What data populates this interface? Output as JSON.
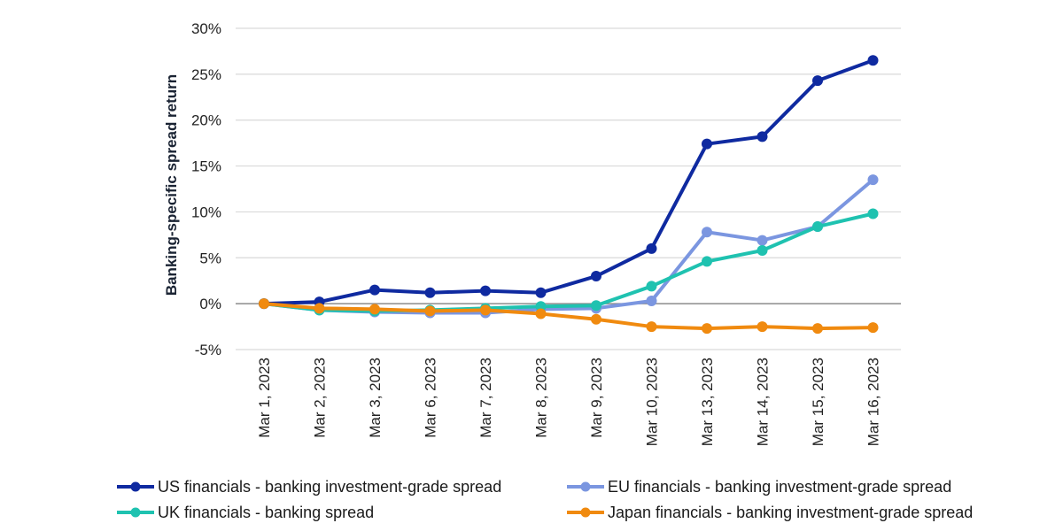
{
  "chart_data": {
    "type": "line",
    "title": "",
    "xlabel": "",
    "ylabel": "Banking-specific spread return",
    "ylim": [
      -5,
      30
    ],
    "yticks": [
      -5,
      0,
      5,
      10,
      15,
      20,
      25,
      30
    ],
    "ytick_labels": [
      "-5%",
      "0%",
      "5%",
      "10%",
      "15%",
      "20%",
      "25%",
      "30%"
    ],
    "grid": true,
    "legend_position": "bottom",
    "categories": [
      "Mar 1, 2023",
      "Mar 2, 2023",
      "Mar 3, 2023",
      "Mar 6, 2023",
      "Mar 7, 2023",
      "Mar 8, 2023",
      "Mar 9, 2023",
      "Mar 10, 2023",
      "Mar 13, 2023",
      "Mar 14, 2023",
      "Mar 15, 2023",
      "Mar 16, 2023"
    ],
    "series": [
      {
        "name": "US financials - banking investment-grade spread",
        "color": "#0f2aa0",
        "values": [
          0,
          0.2,
          1.5,
          1.2,
          1.4,
          1.2,
          3.0,
          6.0,
          17.4,
          18.2,
          24.3,
          26.5
        ]
      },
      {
        "name": "EU financials - banking investment-grade spread",
        "color": "#7b96e0",
        "values": [
          0,
          -0.7,
          -0.9,
          -1.0,
          -1.0,
          -0.6,
          -0.5,
          0.3,
          7.8,
          6.9,
          8.4,
          13.5
        ]
      },
      {
        "name": "UK financials - banking spread",
        "color": "#1fc2b0",
        "values": [
          0,
          -0.7,
          -0.8,
          -0.7,
          -0.5,
          -0.3,
          -0.2,
          1.9,
          4.6,
          5.8,
          8.4,
          9.8
        ]
      },
      {
        "name": "Japan financials - banking investment-grade spread",
        "color": "#f08a0f",
        "values": [
          0,
          -0.5,
          -0.6,
          -0.8,
          -0.7,
          -1.1,
          -1.7,
          -2.5,
          -2.7,
          -2.5,
          -2.7,
          -2.6
        ]
      }
    ]
  }
}
